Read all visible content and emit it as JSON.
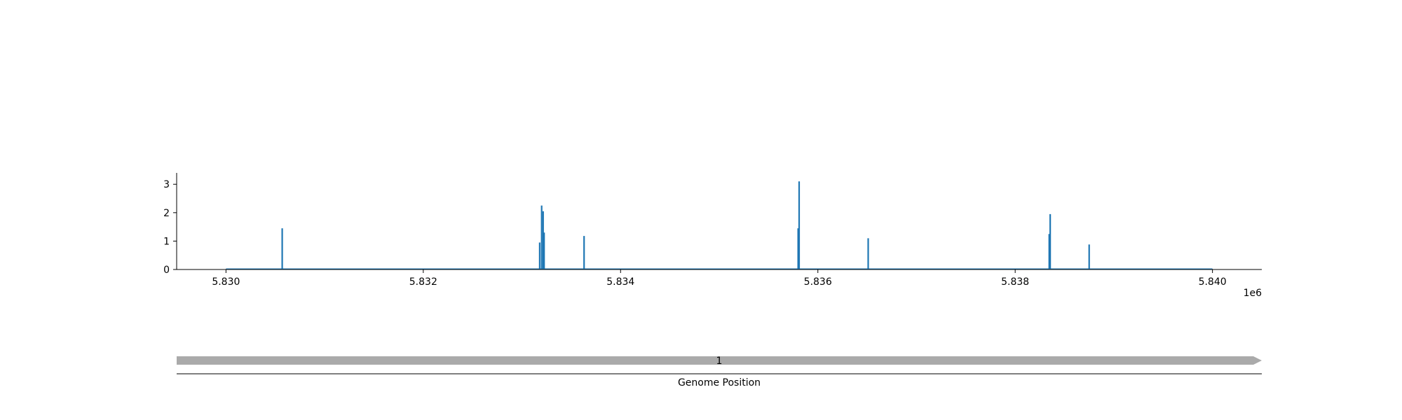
{
  "chart_data": {
    "type": "bar",
    "xlabel": "Genome Position",
    "ylabel": "",
    "offset_label": "1e6",
    "xlim": [
      5829500,
      5840500
    ],
    "ylim": [
      0,
      3.4
    ],
    "grid": false,
    "legend": "none",
    "x_ticks": [
      5830000,
      5832000,
      5834000,
      5836000,
      5838000,
      5840000
    ],
    "x_tick_labels": [
      "5.830",
      "5.832",
      "5.834",
      "5.836",
      "5.838",
      "5.840"
    ],
    "y_ticks": [
      0,
      1,
      2,
      3
    ],
    "y_tick_labels": [
      "0",
      "1",
      "2",
      "3"
    ],
    "baseline_range": [
      5830000,
      5840000
    ],
    "colors": {
      "bars": "#1f77b4",
      "track": "#aaaaaa"
    },
    "points": [
      {
        "x": 5830570,
        "y": 1.45
      },
      {
        "x": 5833180,
        "y": 0.95
      },
      {
        "x": 5833200,
        "y": 2.25
      },
      {
        "x": 5833215,
        "y": 2.05
      },
      {
        "x": 5833225,
        "y": 1.3
      },
      {
        "x": 5833630,
        "y": 1.18
      },
      {
        "x": 5835800,
        "y": 1.45
      },
      {
        "x": 5835810,
        "y": 3.1
      },
      {
        "x": 5836510,
        "y": 1.1
      },
      {
        "x": 5838345,
        "y": 1.25
      },
      {
        "x": 5838355,
        "y": 1.95
      },
      {
        "x": 5838750,
        "y": 0.88
      }
    ],
    "track": {
      "label": "1",
      "start": 5829500,
      "end": 5840500
    }
  }
}
